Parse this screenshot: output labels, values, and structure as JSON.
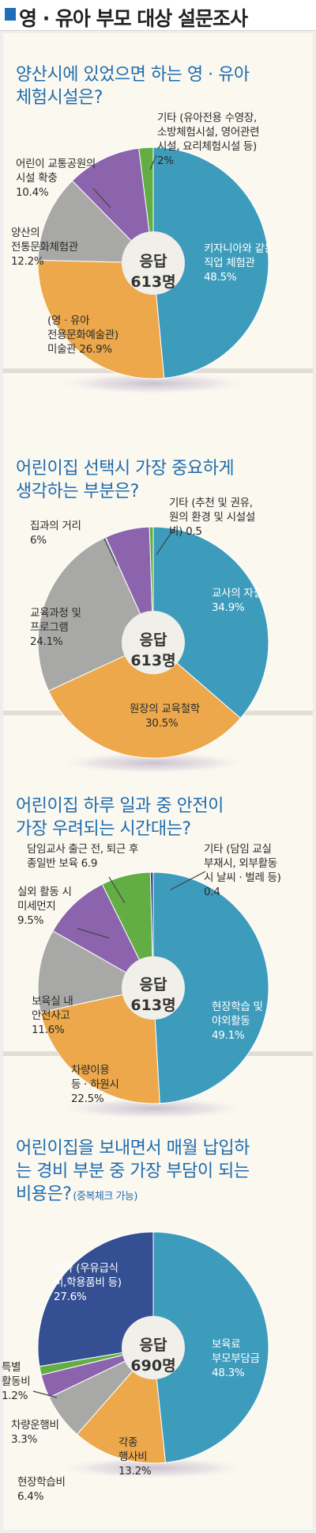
{
  "header": {
    "title": "영 · 유아 부모 대상 설문조사"
  },
  "colors": {
    "blue": "#3d9bbc",
    "orange": "#eca84a",
    "gray": "#a8a9a7",
    "purple": "#8b64ad",
    "green": "#62ad44",
    "navy": "#354f93",
    "center": "#f1efe9"
  },
  "chart_data": [
    {
      "type": "pie",
      "title_lines": [
        "양산시에 있었으면 하는 영 · 유아",
        "체험시설은?"
      ],
      "center_lines": [
        "응답",
        "613명"
      ],
      "slices": [
        {
          "label_lines": [
            "키자니아와 같은",
            "직업 체험관"
          ],
          "value": 48.5,
          "value_text": "48.5%",
          "color": "blue"
        },
        {
          "label_lines": [
            "(영 · 유아",
            "전용문화예술관)",
            "미술관"
          ],
          "value": 26.9,
          "value_text": "26.9%",
          "color": "orange"
        },
        {
          "label_lines": [
            "양산의",
            "전통문화체험관"
          ],
          "value": 12.2,
          "value_text": "12.2%",
          "color": "gray"
        },
        {
          "label_lines": [
            "어린이 교통공원의",
            "시설 확충"
          ],
          "value": 10.4,
          "value_text": "10.4%",
          "color": "purple"
        },
        {
          "label_lines": [
            "기타 (유아전용 수영장,",
            "소방체험시설, 영어관련",
            "시설, 요리체험시설 등)"
          ],
          "value": 2,
          "value_text": "2%",
          "color": "green"
        }
      ]
    },
    {
      "type": "pie",
      "title_lines": [
        "어린이집 선택시 가장 중요하게",
        "생각하는 부분은?"
      ],
      "center_lines": [
        "응답",
        "613명"
      ],
      "slices": [
        {
          "label_lines": [
            "교사의 자질"
          ],
          "value": 34.9,
          "value_text": "34.9%",
          "color": "blue"
        },
        {
          "label_lines": [
            "원장의 교육철학"
          ],
          "value": 30.5,
          "value_text": "30.5%",
          "color": "orange"
        },
        {
          "label_lines": [
            "교육과정 및",
            "프로그램"
          ],
          "value": 24.1,
          "value_text": "24.1%",
          "color": "gray"
        },
        {
          "label_lines": [
            "집과의 거리"
          ],
          "value": 6,
          "value_text": "6%",
          "color": "purple"
        },
        {
          "label_lines": [
            "기타 (추천 및 권유,",
            "원의 환경 및 시설설",
            "비)"
          ],
          "value": 0.5,
          "value_text": "0.5",
          "color": "green"
        }
      ]
    },
    {
      "type": "pie",
      "title_lines": [
        "어린이집 하루 일과 중 안전이",
        "가장 우려되는 시간대는?"
      ],
      "center_lines": [
        "응답",
        "613명"
      ],
      "slices": [
        {
          "label_lines": [
            "현장학습 및",
            "야외활동"
          ],
          "value": 49.1,
          "value_text": "49.1%",
          "color": "blue"
        },
        {
          "label_lines": [
            "차량이용",
            "등 · 하원시"
          ],
          "value": 22.5,
          "value_text": "22.5%",
          "color": "orange"
        },
        {
          "label_lines": [
            "보육실 내",
            "안전사고"
          ],
          "value": 11.6,
          "value_text": "11.6%",
          "color": "gray"
        },
        {
          "label_lines": [
            "실외 활동 시",
            "미세먼지"
          ],
          "value": 9.5,
          "value_text": "9.5%",
          "color": "purple"
        },
        {
          "label_lines": [
            "담임교사 출근 전, 퇴근 후",
            "종일반 보육"
          ],
          "value": 6.9,
          "value_text": "6.9",
          "color": "green"
        },
        {
          "label_lines": [
            "기타 (담임 교실",
            "부재시, 외부활동",
            "시 날씨 · 벌레 등)"
          ],
          "value": 0.4,
          "value_text": "0.4",
          "color": "navy"
        }
      ]
    },
    {
      "type": "pie",
      "title_lines": [
        "어린이집을 보내면서 매월 납입하",
        "는 경비 부분 중 가장 부담이 되는",
        "비용은?"
      ],
      "subtitle": "(중복체크 가능)",
      "center_lines": [
        "응답",
        "690명"
      ],
      "slices": [
        {
          "label_lines": [
            "보육료",
            "부모부담금"
          ],
          "value": 48.3,
          "value_text": "48.3%",
          "color": "blue"
        },
        {
          "label_lines": [
            "각종",
            "행사비"
          ],
          "value": 13.2,
          "value_text": "13.2%",
          "color": "orange"
        },
        {
          "label_lines": [
            "현장학습비"
          ],
          "value": 6.4,
          "value_text": "6.4%",
          "color": "gray"
        },
        {
          "label_lines": [
            "차량운행비"
          ],
          "value": 3.3,
          "value_text": "3.3%",
          "color": "purple"
        },
        {
          "label_lines": [
            "특별",
            "활동비"
          ],
          "value": 1.2,
          "value_text": "1.2%",
          "color": "green"
        },
        {
          "label_lines": [
            "기타 (우유급식",
            "비,학용품비 등)"
          ],
          "value": 27.6,
          "value_text": "27.6%",
          "color": "navy"
        }
      ]
    }
  ]
}
